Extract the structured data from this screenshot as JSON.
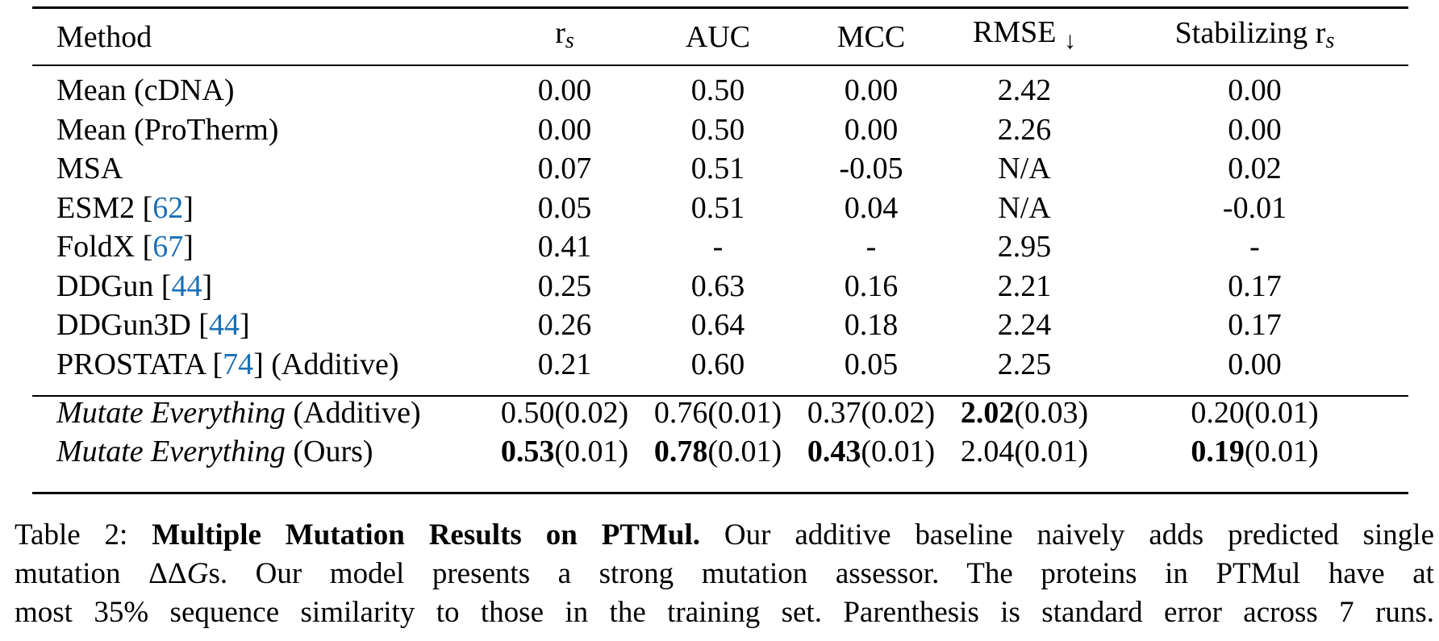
{
  "table": {
    "headers": {
      "method": "Method",
      "rs": "r",
      "rs_sub": "s",
      "auc": "AUC",
      "mcc": "MCC",
      "rmse": "RMSE",
      "rmse_arrow": "↓",
      "stab": "Stabilizing r",
      "stab_sub": "s"
    },
    "baselines": [
      {
        "name": "Mean (cDNA)",
        "cite": "",
        "suffix": "",
        "rs": "0.00",
        "auc": "0.50",
        "mcc": "0.00",
        "rmse": "2.42",
        "stab": "0.00"
      },
      {
        "name": "Mean (ProTherm)",
        "cite": "",
        "suffix": "",
        "rs": "0.00",
        "auc": "0.50",
        "mcc": "0.00",
        "rmse": "2.26",
        "stab": "0.00"
      },
      {
        "name": "MSA",
        "cite": "",
        "suffix": "",
        "rs": "0.07",
        "auc": "0.51",
        "mcc": "-0.05",
        "rmse": "N/A",
        "stab": "0.02"
      },
      {
        "name": "ESM2 [",
        "cite": "62",
        "suffix": "]",
        "rs": "0.05",
        "auc": "0.51",
        "mcc": "0.04",
        "rmse": "N/A",
        "stab": "-0.01"
      },
      {
        "name": "FoldX [",
        "cite": "67",
        "suffix": "]",
        "rs": "0.41",
        "auc": "-",
        "mcc": "-",
        "rmse": "2.95",
        "stab": "-"
      },
      {
        "name": "DDGun [",
        "cite": "44",
        "suffix": "]",
        "rs": "0.25",
        "auc": "0.63",
        "mcc": "0.16",
        "rmse": "2.21",
        "stab": "0.17"
      },
      {
        "name": "DDGun3D [",
        "cite": "44",
        "suffix": "]",
        "rs": "0.26",
        "auc": "0.64",
        "mcc": "0.18",
        "rmse": "2.24",
        "stab": "0.17"
      },
      {
        "name": "PROSTATA [",
        "cite": "74",
        "suffix": "] (Additive)",
        "rs": "0.21",
        "auc": "0.60",
        "mcc": "0.05",
        "rmse": "2.25",
        "stab": "0.00"
      }
    ],
    "ours": [
      {
        "name_em": "Mutate Everything",
        "name_rest": " (Additive)",
        "rs": {
          "v": "0.50",
          "se": "(0.02)"
        },
        "auc": {
          "v": "0.76",
          "se": "(0.01)"
        },
        "mcc": {
          "v": "0.37",
          "se": "(0.02)"
        },
        "rmse": {
          "v": "2.02",
          "se": "(0.03)"
        },
        "stab": {
          "v": "0.20",
          "se": "(0.01)"
        }
      },
      {
        "name_em": "Mutate Everything",
        "name_rest": " (Ours)",
        "rs": {
          "v": "0.53",
          "se": "(0.01)"
        },
        "auc": {
          "v": "0.78",
          "se": "(0.01)"
        },
        "mcc": {
          "v": "0.43",
          "se": "(0.01)"
        },
        "rmse": {
          "v": "2.04",
          "se": "(0.01)"
        },
        "stab": {
          "v": "0.19",
          "se": "(0.01)"
        }
      }
    ]
  },
  "caption": {
    "label": "Table 2: ",
    "title": "Multiple Mutation Results on PTMul.",
    "line1_rest": " Our additive baseline naively adds predicted single",
    "line2_a": "mutation ",
    "line2_delta": "ΔΔ",
    "line2_g": "G",
    "line2_b": "s. Our model presents a strong mutation assessor. The proteins in PTMul have at",
    "line3": "most 35% sequence similarity to those in the training set. Parenthesis is standard error across 7 runs."
  },
  "colors": {
    "citation": "#1a6fb5",
    "text": "#000000"
  }
}
